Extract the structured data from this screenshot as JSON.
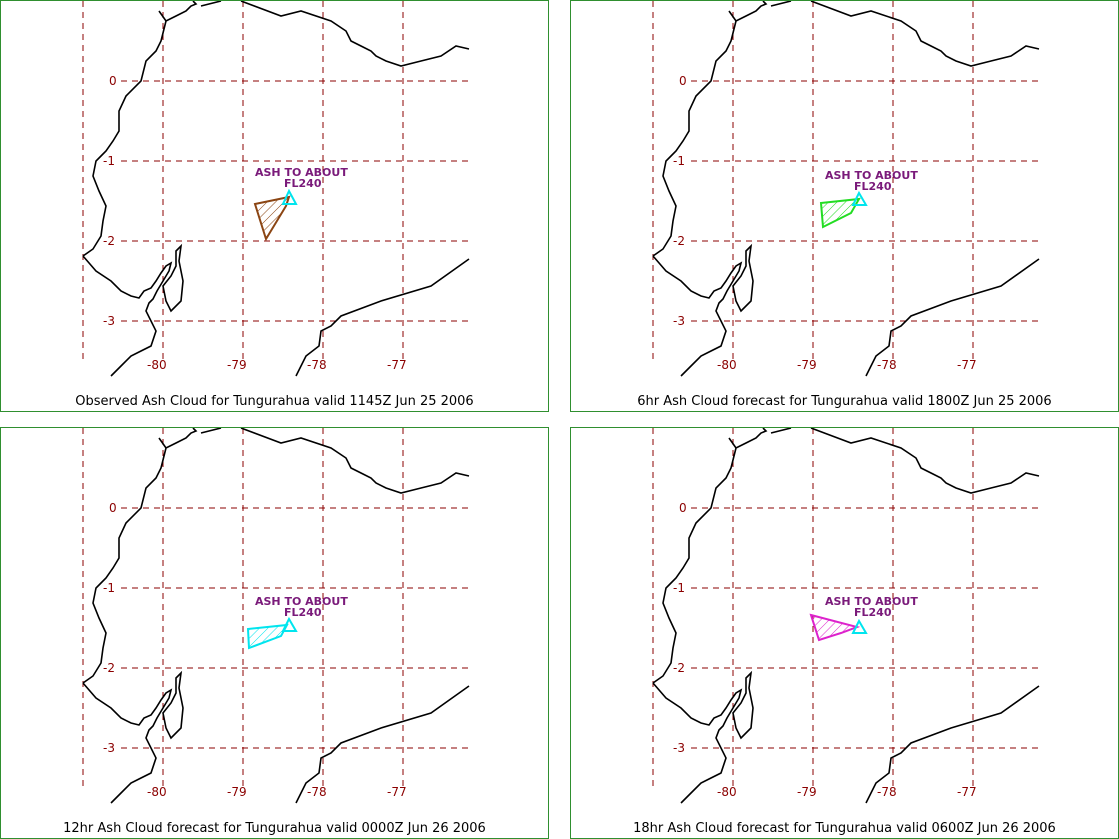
{
  "lat_labels": [
    "0",
    "-1",
    "-2",
    "-3"
  ],
  "lon_labels": [
    "-80",
    "-79",
    "-78",
    "-77"
  ],
  "ash_label_line1": "ASH TO ABOUT",
  "ash_label_line2": "FL240",
  "panels": [
    {
      "caption": "Observed Ash Cloud for Tungurahua valid 1145Z Jun 25 2006",
      "cloud_color": "#8b4513"
    },
    {
      "caption": "6hr Ash Cloud forecast for Tungurahua valid 1800Z Jun 25 2006",
      "cloud_color": "#22dd22"
    },
    {
      "caption": "12hr Ash Cloud forecast for Tungurahua valid 0000Z Jun 26 2006",
      "cloud_color": "#00e5ee"
    },
    {
      "caption": "18hr Ash Cloud forecast for Tungurahua valid 0600Z Jun 26 2006",
      "cloud_color": "#dd22cc"
    }
  ],
  "volcano_marker_color": "#00e5ee"
}
